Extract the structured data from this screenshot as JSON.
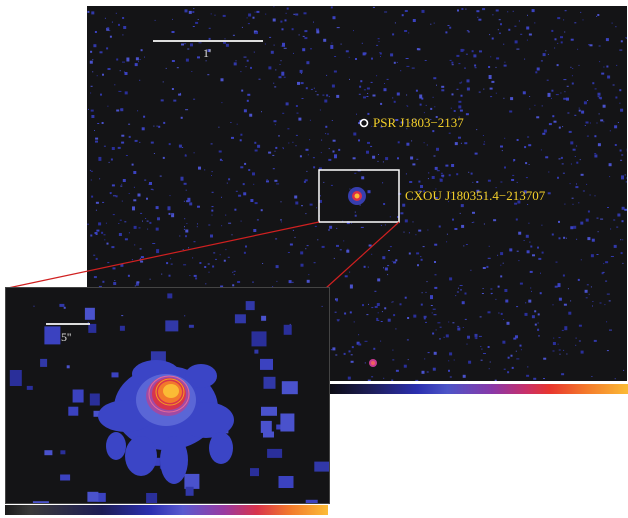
{
  "main_image": {
    "scale_bar_label": "1'",
    "labels": {
      "pulsar": "PSR J1803−2137",
      "source": "CXOU J180351.4−213707"
    }
  },
  "inset_image": {
    "scale_bar_label": "5''"
  },
  "colors": {
    "background": "#141416",
    "noise": "#3b42c0",
    "label": "#f4d02a",
    "box": "#ffffff",
    "connector": "#d02020",
    "source_core": "#fbbb35"
  }
}
